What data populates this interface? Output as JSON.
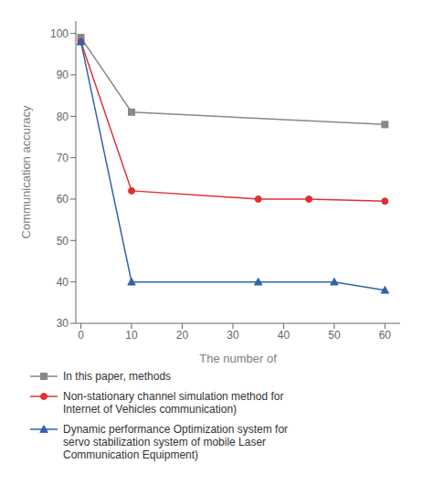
{
  "chart_data": {
    "type": "line",
    "xlabel": "The number of",
    "ylabel": "Communication accuracy",
    "xlim": [
      -1,
      63
    ],
    "ylim": [
      30,
      103
    ],
    "xticks": [
      0,
      10,
      20,
      30,
      40,
      50,
      60
    ],
    "yticks": [
      30,
      40,
      50,
      60,
      70,
      80,
      90,
      100
    ],
    "grid": false,
    "legend": "bottom",
    "series": [
      {
        "name": "In this paper, methods",
        "color": "#888888",
        "marker": "square",
        "x": [
          0,
          10,
          60
        ],
        "values": [
          99,
          81,
          78
        ]
      },
      {
        "name": "Non-stationary channel simulation method for\nInternet of Vehicles communication)",
        "color": "#e03030",
        "marker": "circle",
        "x": [
          0,
          10,
          35,
          45,
          60
        ],
        "values": [
          98,
          62,
          60,
          60,
          59.5
        ]
      },
      {
        "name": "Dynamic performance Optimization system for\nservo stabilization system of mobile Laser\nCommunication Equipment)",
        "color": "#3060b0",
        "marker": "triangle",
        "x": [
          0,
          10,
          35,
          50,
          60
        ],
        "values": [
          98,
          40,
          40,
          40,
          38
        ]
      }
    ]
  }
}
